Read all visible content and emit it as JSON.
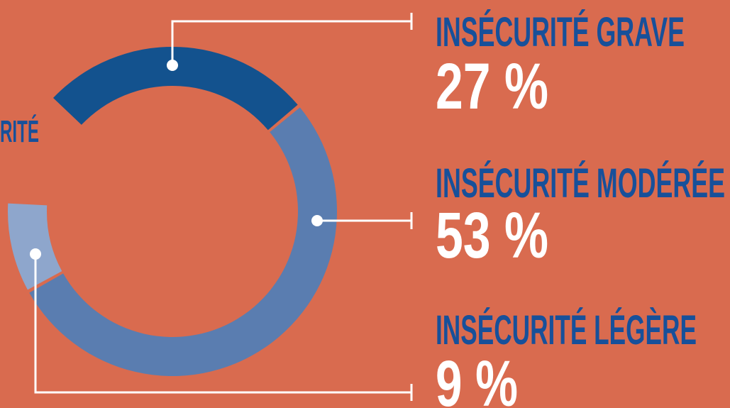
{
  "chart_data": {
    "type": "donut",
    "annotation": "RITÉ",
    "categories": [
      "INSÉCURITÉ GRAVE",
      "INSÉCURITÉ MODÉRÉE",
      "INSÉCURITÉ LÉGÈRE"
    ],
    "values": [
      27,
      53,
      9
    ],
    "value_labels": [
      "27 %",
      "53 %",
      "9 %"
    ],
    "colors": [
      "#13528e",
      "#5a7db0",
      "#8ea6cc"
    ]
  }
}
